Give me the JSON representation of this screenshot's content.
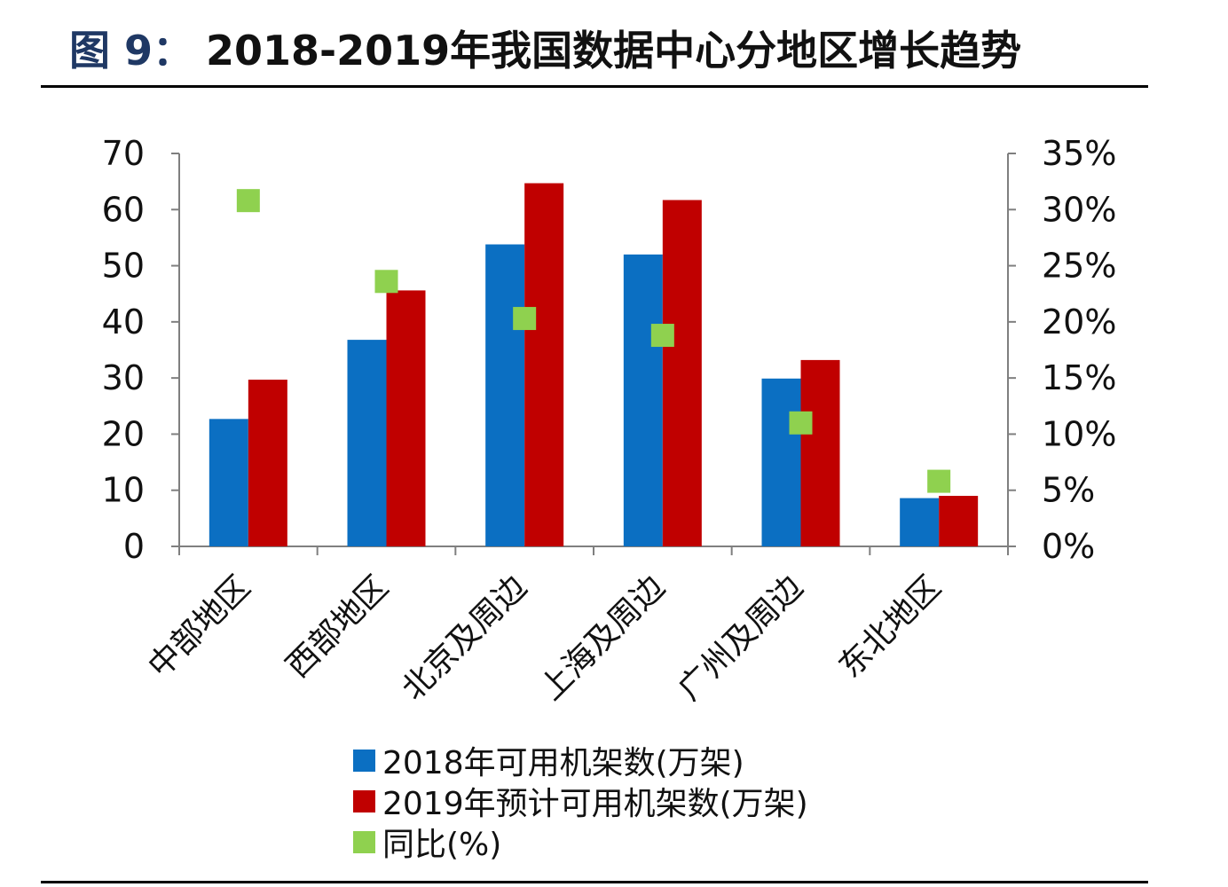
{
  "header": {
    "fig_label": "图 9：",
    "title": "2018-2019年我国数据中心分地区增长趋势"
  },
  "colors": {
    "series_2018": "#0b6fc2",
    "series_2019": "#c00000",
    "yoy": "#8fd14f",
    "axis": "#7f7f7f"
  },
  "chart_data": {
    "type": "bar",
    "categories": [
      "中部地区",
      "西部地区",
      "北京及周边",
      "上海及周边",
      "广州及周边",
      "东北地区"
    ],
    "series": [
      {
        "name": "2018年可用机架数(万架)",
        "values": [
          22.7,
          36.8,
          53.8,
          52.0,
          29.9,
          8.6
        ],
        "axis": "left",
        "kind": "bar"
      },
      {
        "name": "2019年预计可用机架数(万架)",
        "values": [
          29.7,
          45.6,
          64.7,
          61.7,
          33.2,
          9.0
        ],
        "axis": "left",
        "kind": "bar"
      },
      {
        "name": "同比(%)",
        "values": [
          30.8,
          23.6,
          20.3,
          18.8,
          11.0,
          5.8
        ],
        "axis": "right",
        "kind": "marker"
      }
    ],
    "y_left": {
      "ylim": [
        0,
        70
      ],
      "ticks": [
        0,
        10,
        20,
        30,
        40,
        50,
        60,
        70
      ],
      "tick_labels": [
        "0",
        "10",
        "20",
        "30",
        "40",
        "50",
        "60",
        "70"
      ]
    },
    "y_right": {
      "ylim": [
        0,
        35
      ],
      "ticks": [
        0,
        5,
        10,
        15,
        20,
        25,
        30,
        35
      ],
      "tick_labels": [
        "0%",
        "5%",
        "10%",
        "15%",
        "20%",
        "25%",
        "30%",
        "35%"
      ]
    },
    "grid": false,
    "legend_position": "bottom"
  }
}
